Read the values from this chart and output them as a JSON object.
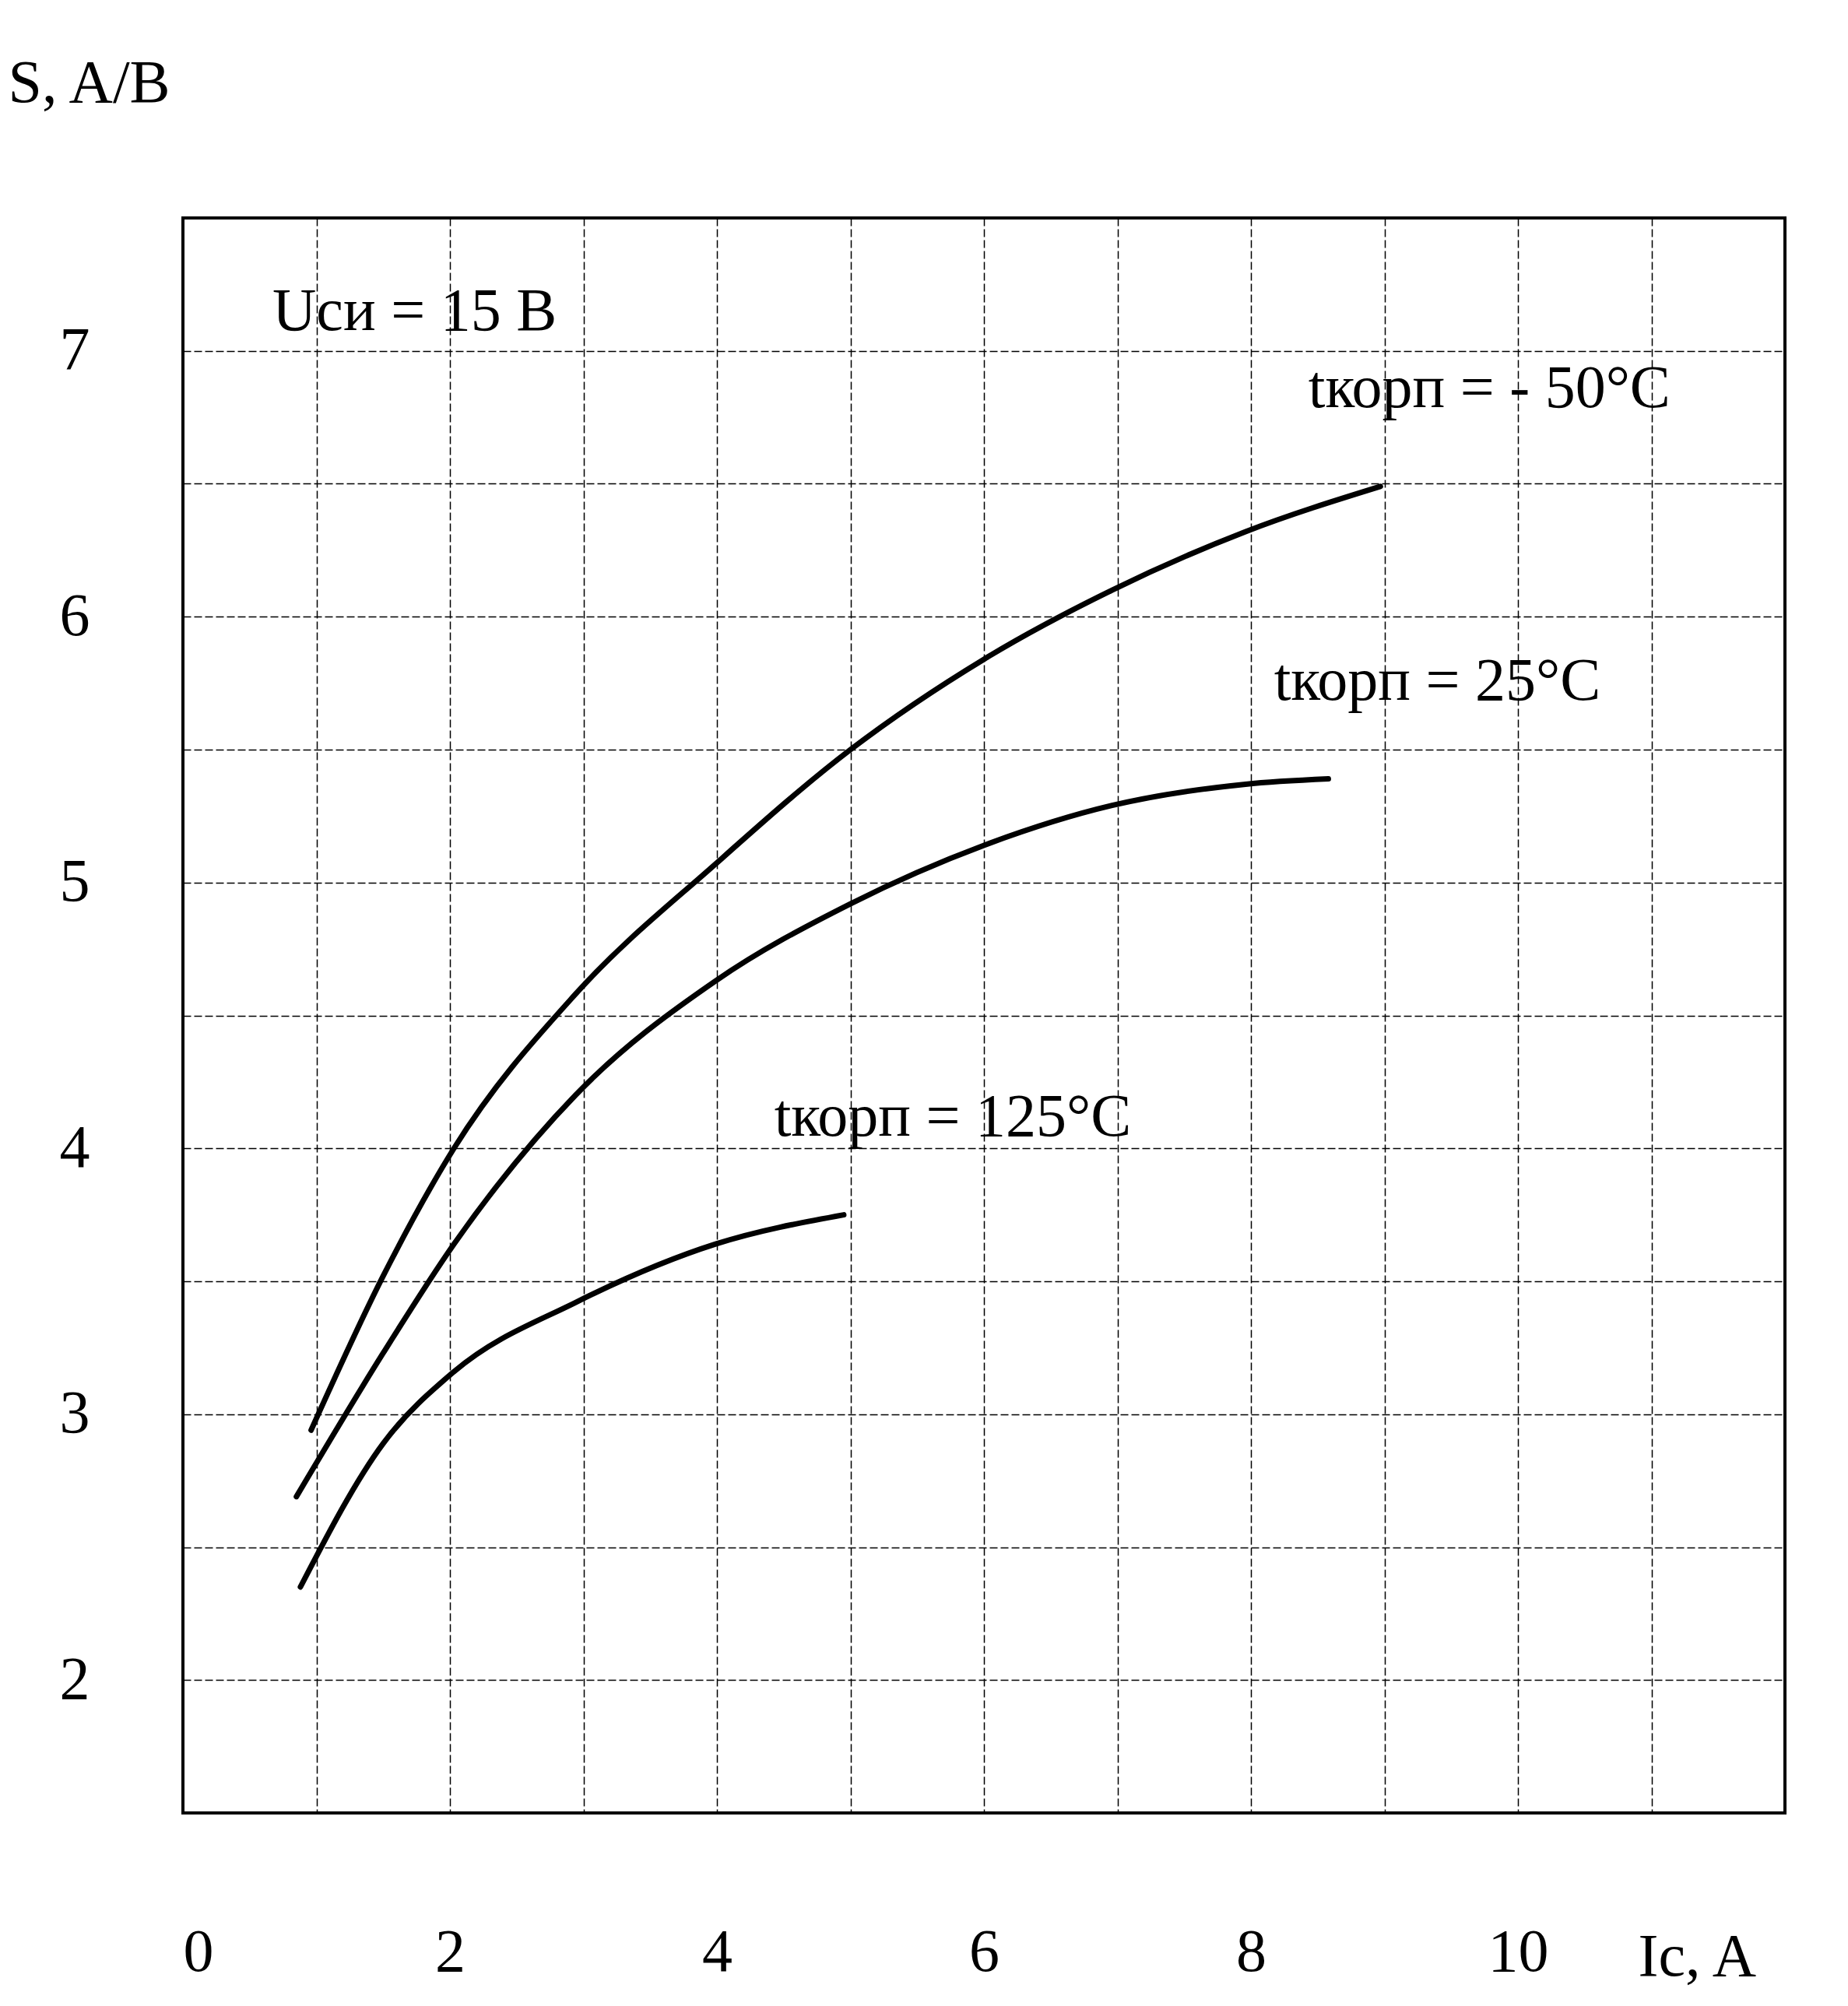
{
  "chart_data": {
    "type": "line",
    "xlabel": "Ic, A",
    "ylabel": "S, A/B",
    "annotations": [
      "Uси = 15 В"
    ],
    "xlim": [
      0,
      12
    ],
    "ylim": [
      1.5,
      7.5
    ],
    "xticks": [
      0,
      {
        "value": 1,
        "label": null
      },
      2,
      {
        "value": 3,
        "label": null
      },
      4,
      {
        "value": 5,
        "label": null
      },
      6,
      {
        "value": 7,
        "label": null
      },
      8,
      {
        "value": 9,
        "label": null
      },
      10,
      {
        "value": 11,
        "label": null
      },
      {
        "value": 12,
        "label": null
      }
    ],
    "yticks": [
      {
        "value": 1.5,
        "label": null
      },
      2,
      {
        "value": 2.5,
        "label": null
      },
      3,
      {
        "value": 3.5,
        "label": null
      },
      4,
      {
        "value": 4.5,
        "label": null
      },
      5,
      {
        "value": 5.5,
        "label": null
      },
      6,
      {
        "value": 6.5,
        "label": null
      },
      7,
      {
        "value": 7.5,
        "label": null
      }
    ],
    "grid": true,
    "line_style": "solid",
    "series": [
      {
        "name": "tкорп = - 50°C",
        "color": "#000000",
        "x": [
          0.96,
          1.5,
          2.03,
          2.94,
          3.99,
          5.0,
          6.0,
          6.96,
          7.96,
          8.97
        ],
        "values": [
          2.94,
          3.52,
          4.0,
          4.58,
          5.07,
          5.5,
          5.84,
          6.1,
          6.32,
          6.49
        ]
      },
      {
        "name": "tкорп = 25°C",
        "color": "#000000",
        "x": [
          0.85,
          1.5,
          2.03,
          2.94,
          3.99,
          5.0,
          6.0,
          6.96,
          7.96,
          8.58
        ],
        "values": [
          2.69,
          3.23,
          3.64,
          4.2,
          4.63,
          4.92,
          5.14,
          5.29,
          5.37,
          5.39
        ]
      },
      {
        "name": "tкорп = 125°C",
        "color": "#000000",
        "x": [
          0.88,
          1.5,
          2.03,
          2.94,
          3.99,
          4.95
        ],
        "values": [
          2.35,
          2.89,
          3.16,
          3.42,
          3.64,
          3.75
        ]
      }
    ]
  }
}
